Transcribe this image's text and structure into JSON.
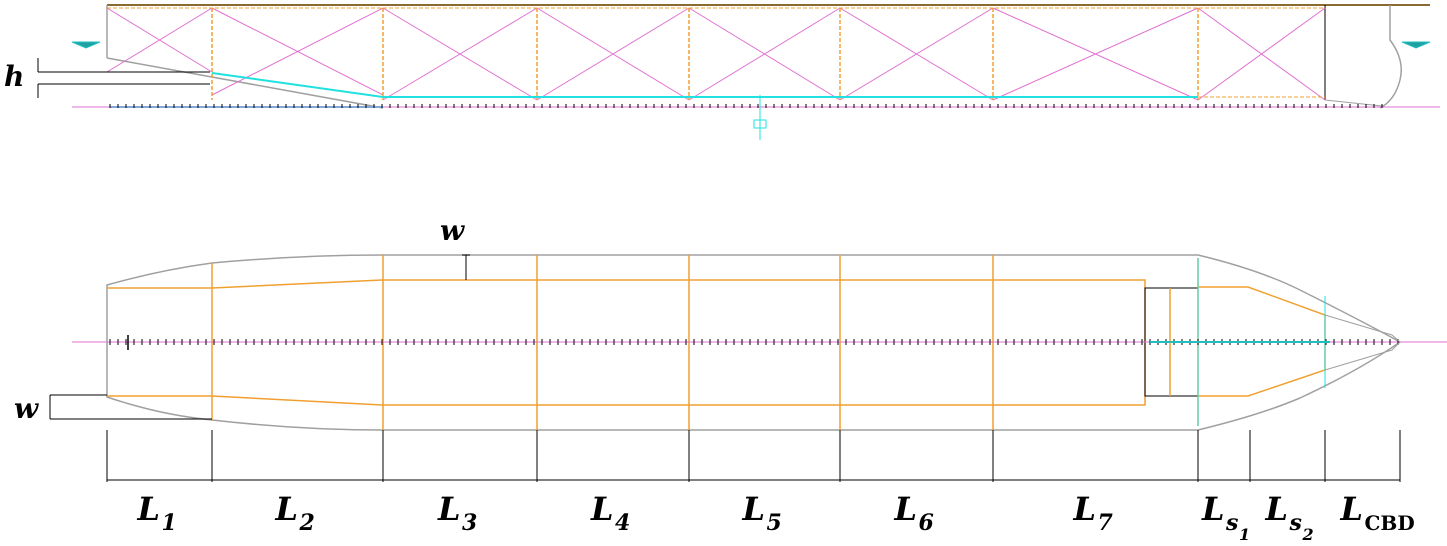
{
  "labels": {
    "h": "h",
    "w_top": "w",
    "w_left": "w"
  },
  "segments": [
    {
      "main": "L",
      "sub": "1"
    },
    {
      "main": "L",
      "sub": "2"
    },
    {
      "main": "L",
      "sub": "3"
    },
    {
      "main": "L",
      "sub": "4"
    },
    {
      "main": "L",
      "sub": "5"
    },
    {
      "main": "L",
      "sub": "6"
    },
    {
      "main": "L",
      "sub": "7"
    },
    {
      "main": "L",
      "sub": "s",
      "subsub": "1"
    },
    {
      "main": "L",
      "sub": "s",
      "subsub": "2"
    },
    {
      "main": "L",
      "sub": "CBD"
    }
  ],
  "colors": {
    "hull": "#a0a0a0",
    "frame": "#f0a030",
    "brace": "#e070d0",
    "cyan": "#20e0e0",
    "axis": "#e070d0",
    "dim": "#000000"
  }
}
